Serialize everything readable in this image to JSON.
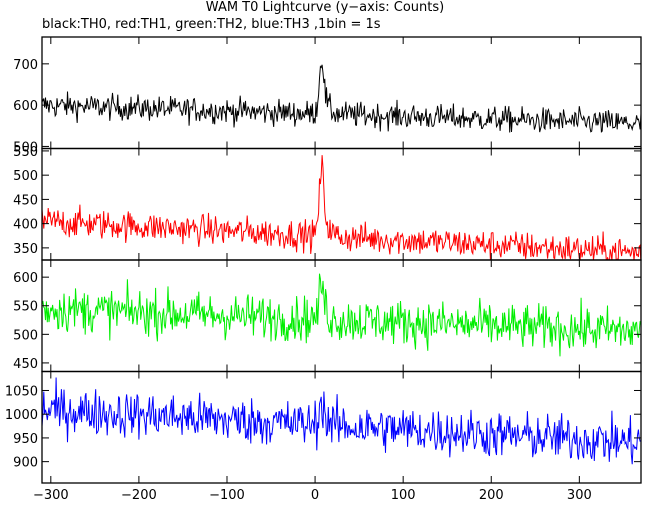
{
  "title": "WAM T0 Lightcurve (y−axis: Counts)",
  "subtitle": "black:TH0, red:TH1, green:TH2, blue:TH3 ,1bin = 1s",
  "chart_data": {
    "type": "line",
    "xlabel": "",
    "ylabel": "",
    "xlim": [
      -310,
      370
    ],
    "x_ticks": [
      -300,
      -200,
      -100,
      0,
      100,
      200,
      300
    ],
    "x_tick_labels": [
      "−300",
      "−200",
      "−100",
      "0",
      "100",
      "200",
      "300"
    ],
    "grid": false,
    "bin_seconds": 1,
    "panels": [
      {
        "name": "TH0",
        "color": "#000000",
        "ylim": [
          495,
          765
        ],
        "y_ticks": [
          500,
          600,
          700
        ],
        "y_tick_labels": [
          "500",
          "600",
          "700"
        ],
        "baseline_start": 600,
        "baseline_end": 555,
        "noise": 22,
        "burst_peak": 720,
        "burst_time": 8
      },
      {
        "name": "TH1",
        "color": "#ff0000",
        "ylim": [
          325,
          555
        ],
        "y_ticks": [
          350,
          400,
          450,
          500,
          550
        ],
        "y_tick_labels": [
          "350",
          "400",
          "450",
          "500",
          "550"
        ],
        "baseline_start": 405,
        "baseline_end": 340,
        "noise": 22,
        "burst_peak": 520,
        "burst_time": 8
      },
      {
        "name": "TH2",
        "color": "#00ee00",
        "ylim": [
          435,
          630
        ],
        "y_ticks": [
          450,
          500,
          550,
          600
        ],
        "y_tick_labels": [
          "450",
          "500",
          "550",
          "600"
        ],
        "baseline_start": 545,
        "baseline_end": 505,
        "noise": 28,
        "burst_peak": 590,
        "burst_time": 8
      },
      {
        "name": "TH3",
        "color": "#0000ff",
        "ylim": [
          855,
          1090
        ],
        "y_ticks": [
          900,
          950,
          1000,
          1050
        ],
        "y_tick_labels": [
          "900",
          "950",
          "1000",
          "1050"
        ],
        "baseline_start": 1010,
        "baseline_end": 940,
        "noise": 35,
        "burst_peak": 1030,
        "burst_time": 8
      }
    ]
  }
}
